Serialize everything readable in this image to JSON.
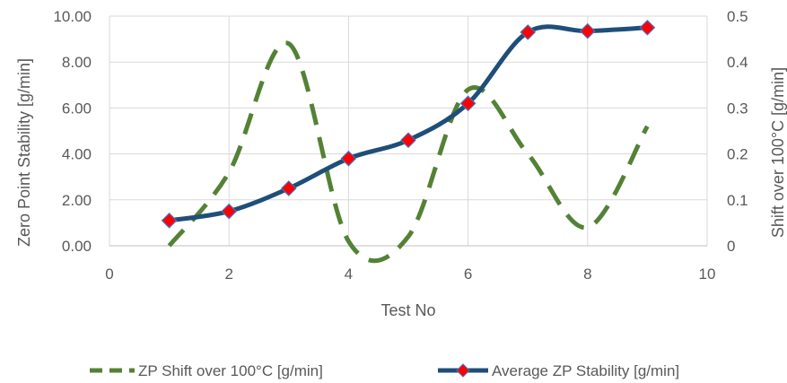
{
  "chart_data": {
    "type": "line",
    "x_axis": {
      "label": "Test No",
      "range": [
        0,
        10
      ],
      "ticks": [
        "0",
        "2",
        "4",
        "6",
        "8",
        "10"
      ]
    },
    "y_axis_left": {
      "label": "Zero Point Stability [g/min]",
      "range": [
        0,
        10
      ],
      "ticks": [
        "0.00",
        "2.00",
        "4.00",
        "6.00",
        "8.00",
        "10.00"
      ]
    },
    "y_axis_right": {
      "label": "Shift over 100°C [g/min]",
      "range": [
        0,
        0.5
      ],
      "ticks": [
        "0",
        "0.1",
        "0.2",
        "0.3",
        "0.4",
        "0.5"
      ]
    },
    "grid": true,
    "legend_position": "bottom",
    "series": [
      {
        "name": "ZP Shift over 100°C [g/min]",
        "axis": "right",
        "style": "dashed",
        "color": "#548235",
        "x": [
          1,
          2,
          3,
          4,
          5,
          6,
          7,
          8,
          9
        ],
        "y": [
          0.0,
          0.16,
          0.44,
          0.01,
          0.02,
          0.34,
          0.2,
          0.04,
          0.26
        ]
      },
      {
        "name": "Average ZP Stability [g/min]",
        "axis": "left",
        "style": "solid",
        "color": "#1F4E79",
        "marker": "diamond",
        "marker_color": "#FF0000",
        "x": [
          1,
          2,
          3,
          4,
          5,
          6,
          7,
          8,
          9
        ],
        "y": [
          1.1,
          1.5,
          2.5,
          3.8,
          4.6,
          6.2,
          9.3,
          9.35,
          9.5
        ]
      }
    ]
  }
}
